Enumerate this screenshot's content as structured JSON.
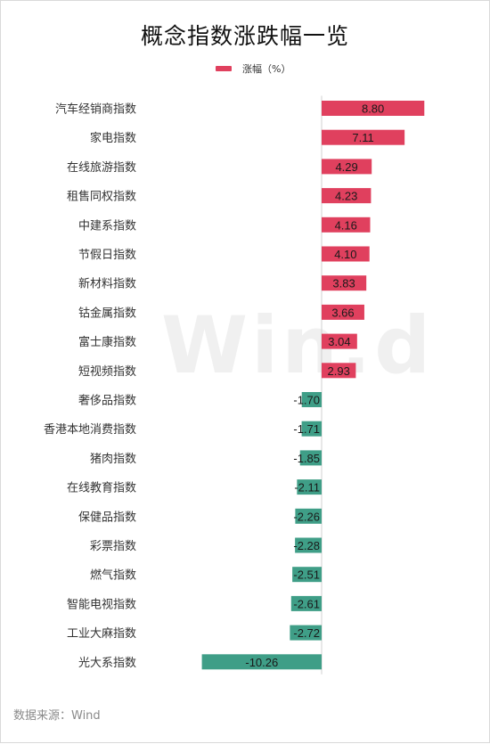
{
  "title": "概念指数涨跌幅一览",
  "legend": {
    "label": "涨幅（%）",
    "color": "#e0405e"
  },
  "watermark": "Win.d",
  "source": "数据来源：Wind",
  "colors": {
    "positive": "#e0405e",
    "negative": "#3f9e87",
    "axis": "#d0d0d0"
  },
  "chart_data": {
    "type": "bar",
    "orientation": "horizontal",
    "title": "概念指数涨跌幅一览",
    "categories": [
      "汽车经销商指数",
      "家电指数",
      "在线旅游指数",
      "租售同权指数",
      "中建系指数",
      "节假日指数",
      "新材料指数",
      "钴金属指数",
      "富士康指数",
      "短视频指数",
      "奢侈品指数",
      "香港本地消费指数",
      "猪肉指数",
      "在线教育指数",
      "保健品指数",
      "彩票指数",
      "燃气指数",
      "智能电视指数",
      "工业大麻指数",
      "光大系指数"
    ],
    "series": [
      {
        "name": "涨幅（%）",
        "values": [
          8.8,
          7.11,
          4.29,
          4.23,
          4.16,
          4.1,
          3.83,
          3.66,
          3.04,
          2.93,
          -1.7,
          -1.71,
          -1.85,
          -2.11,
          -2.26,
          -2.28,
          -2.51,
          -2.61,
          -2.72,
          -10.26
        ]
      }
    ],
    "value_labels": [
      "8.80",
      "7.11",
      "4.29",
      "4.23",
      "4.16",
      "4.10",
      "3.83",
      "3.66",
      "3.04",
      "2.93",
      "-1.70",
      "-1.71",
      "-1.85",
      "-2.11",
      "-2.26",
      "-2.28",
      "-2.51",
      "-2.61",
      "-2.72",
      "-10.26"
    ],
    "legend_position": "top",
    "grid": false
  }
}
